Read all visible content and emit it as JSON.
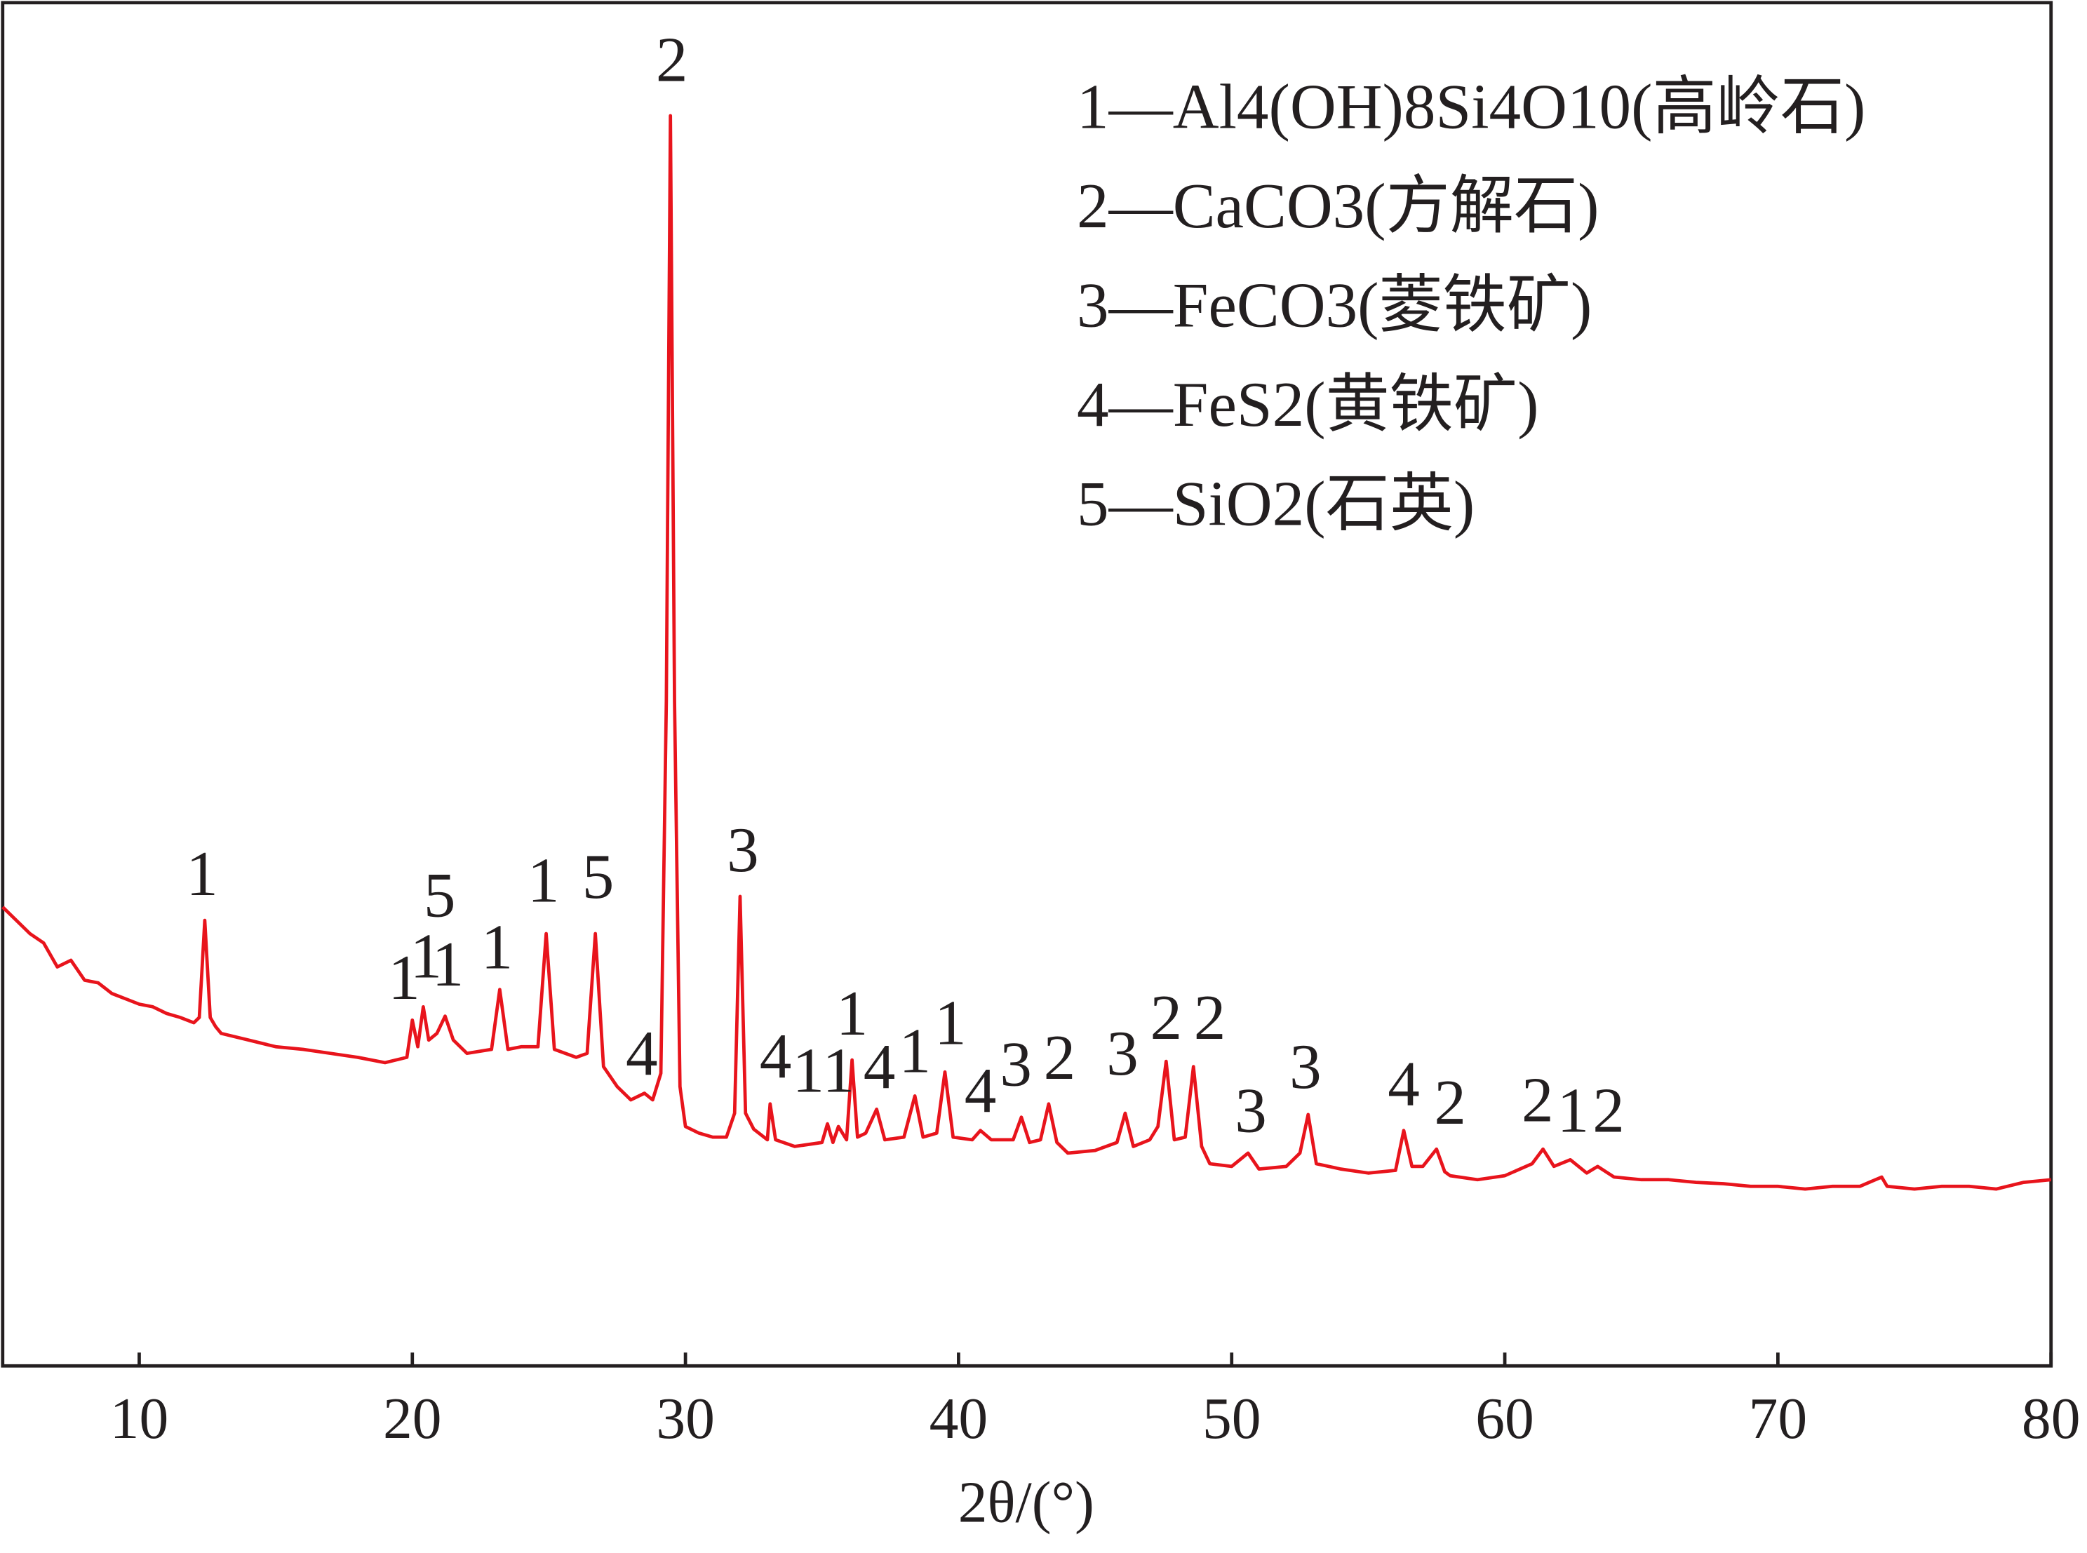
{
  "chart_data": {
    "type": "line",
    "x_label": "2θ/(°)",
    "color": "#e8141c",
    "xlim": [
      5,
      80
    ],
    "xticks": [
      10,
      20,
      30,
      40,
      50,
      60,
      70,
      80
    ],
    "ylim": [
      0,
      1025
    ],
    "x": [
      5,
      5.5,
      6,
      6.5,
      7,
      7.5,
      8,
      8.5,
      9,
      9.5,
      10,
      10.5,
      11,
      11.5,
      12,
      12.2,
      12.4,
      12.6,
      12.8,
      13,
      14,
      15,
      16,
      17,
      18,
      19,
      19.8,
      20.0,
      20.2,
      20.4,
      20.6,
      20.9,
      21.2,
      21.5,
      22,
      22.9,
      23.2,
      23.5,
      24,
      24.6,
      24.9,
      25.2,
      26,
      26.4,
      26.7,
      27.0,
      27.5,
      28,
      28.5,
      28.8,
      29.1,
      29.3,
      29.45,
      29.6,
      29.8,
      30,
      30.5,
      31,
      31.5,
      31.8,
      32.0,
      32.2,
      32.5,
      33,
      33.1,
      33.3,
      34,
      35,
      35.2,
      35.4,
      35.6,
      35.9,
      36.1,
      36.3,
      36.6,
      37.0,
      37.3,
      38,
      38.4,
      38.7,
      39.2,
      39.5,
      39.8,
      40.5,
      40.8,
      41.2,
      42,
      42.3,
      42.6,
      43,
      43.3,
      43.6,
      44,
      45,
      45.8,
      46.1,
      46.4,
      47,
      47.3,
      47.6,
      47.9,
      48.3,
      48.6,
      48.9,
      49.2,
      50,
      50.6,
      51,
      52,
      52.5,
      52.8,
      53.1,
      54,
      55,
      56,
      56.3,
      56.6,
      57,
      57.5,
      57.8,
      58,
      59,
      60,
      61,
      61.4,
      61.8,
      62.4,
      63,
      63.4,
      64,
      65,
      66,
      67,
      68,
      69,
      70,
      71,
      72,
      73,
      73.8,
      74,
      75,
      76,
      77,
      78,
      79,
      80
    ],
    "values": [
      345,
      335,
      325,
      318,
      300,
      305,
      290,
      288,
      280,
      276,
      272,
      270,
      265,
      262,
      258,
      262,
      335,
      262,
      255,
      250,
      245,
      240,
      238,
      235,
      232,
      228,
      232,
      260,
      240,
      270,
      245,
      250,
      263,
      245,
      235,
      238,
      283,
      238,
      240,
      240,
      325,
      238,
      232,
      235,
      325,
      225,
      210,
      200,
      205,
      200,
      220,
      500,
      940,
      500,
      210,
      180,
      175,
      172,
      172,
      190,
      353,
      190,
      178,
      170,
      197,
      170,
      165,
      168,
      182,
      168,
      180,
      170,
      230,
      172,
      175,
      193,
      170,
      172,
      203,
      172,
      175,
      221,
      172,
      170,
      177,
      170,
      170,
      187,
      168,
      170,
      197,
      168,
      160,
      162,
      168,
      190,
      165,
      170,
      180,
      229,
      170,
      172,
      225,
      165,
      152,
      150,
      160,
      148,
      150,
      160,
      189,
      152,
      148,
      145,
      147,
      177,
      150,
      150,
      163,
      146,
      143,
      140,
      143,
      152,
      163,
      150,
      155,
      145,
      150,
      142,
      140,
      140,
      138,
      137,
      135,
      135,
      133,
      135,
      135,
      142,
      135,
      133,
      135,
      135,
      133,
      138,
      140
    ],
    "annotations": [
      {
        "text": "1",
        "x": 12.3,
        "y": 365
      },
      {
        "text": "1",
        "x": 19.7,
        "y": 287
      },
      {
        "text": "1",
        "x": 20.5,
        "y": 303
      },
      {
        "text": "5",
        "x": 21.0,
        "y": 349
      },
      {
        "text": "1",
        "x": 21.3,
        "y": 297
      },
      {
        "text": "1",
        "x": 23.1,
        "y": 310
      },
      {
        "text": "1",
        "x": 24.8,
        "y": 360
      },
      {
        "text": "5",
        "x": 26.8,
        "y": 363
      },
      {
        "text": "4",
        "x": 28.4,
        "y": 230
      },
      {
        "text": "2",
        "x": 29.5,
        "y": 977
      },
      {
        "text": "3",
        "x": 32.1,
        "y": 383
      },
      {
        "text": "4",
        "x": 33.3,
        "y": 228
      },
      {
        "text": "1",
        "x": 34.5,
        "y": 217
      },
      {
        "text": "1",
        "x": 35.6,
        "y": 217
      },
      {
        "text": "1",
        "x": 36.1,
        "y": 260
      },
      {
        "text": "4",
        "x": 37.1,
        "y": 220
      },
      {
        "text": "1",
        "x": 38.4,
        "y": 232
      },
      {
        "text": "1",
        "x": 39.7,
        "y": 253
      },
      {
        "text": "4",
        "x": 40.8,
        "y": 202
      },
      {
        "text": "3",
        "x": 42.1,
        "y": 222
      },
      {
        "text": "2",
        "x": 43.7,
        "y": 227
      },
      {
        "text": "3",
        "x": 46.0,
        "y": 230
      },
      {
        "text": "2",
        "x": 47.6,
        "y": 257
      },
      {
        "text": "2",
        "x": 49.2,
        "y": 257
      },
      {
        "text": "3",
        "x": 50.7,
        "y": 187
      },
      {
        "text": "3",
        "x": 52.7,
        "y": 220
      },
      {
        "text": "4",
        "x": 56.3,
        "y": 207
      },
      {
        "text": "2",
        "x": 58.0,
        "y": 193
      },
      {
        "text": "2",
        "x": 61.2,
        "y": 195
      },
      {
        "text": "1",
        "x": 62.5,
        "y": 187
      },
      {
        "text": "2",
        "x": 63.8,
        "y": 187
      }
    ],
    "legend_lines": [
      "1—Al4(OH)8Si4O10(高岭石)",
      "2—CaCO3(方解石)",
      "3—FeCO3(菱铁矿)",
      "4—FeS2(黄铁矿)",
      "5—SiO2(石英)"
    ]
  }
}
